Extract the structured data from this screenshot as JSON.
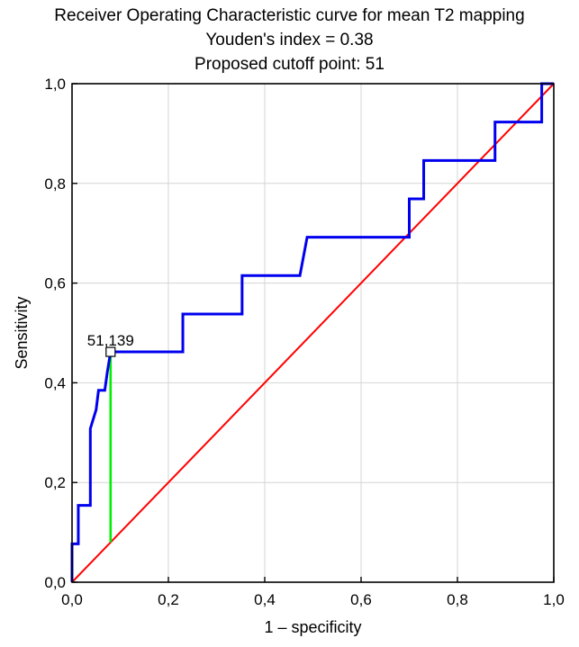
{
  "chart_data": {
    "type": "line",
    "title": "Receiver Operating Characteristic curve for mean T2 mapping",
    "subtitle_1": "Youden's index = 0.38",
    "subtitle_2": "Proposed cutoff point: 51",
    "xlabel": "1 – specificity",
    "ylabel": "Sensitivity",
    "xlim": [
      0,
      1
    ],
    "ylim": [
      0,
      1
    ],
    "grid": true,
    "xticks": [
      "0,0",
      "0,2",
      "0,4",
      "0,6",
      "0,8",
      "1,0"
    ],
    "yticks": [
      "0,0",
      "0,2",
      "0,4",
      "0,6",
      "0,8",
      "1,0"
    ],
    "series": [
      {
        "color": "#0000ee",
        "points": [
          [
            0.0,
            0.0
          ],
          [
            0.0,
            0.077
          ],
          [
            0.013,
            0.077
          ],
          [
            0.013,
            0.154
          ],
          [
            0.038,
            0.154
          ],
          [
            0.038,
            0.308
          ],
          [
            0.05,
            0.346
          ],
          [
            0.055,
            0.385
          ],
          [
            0.068,
            0.385
          ],
          [
            0.073,
            0.42
          ],
          [
            0.08,
            0.462
          ],
          [
            0.23,
            0.462
          ],
          [
            0.23,
            0.538
          ],
          [
            0.353,
            0.538
          ],
          [
            0.353,
            0.615
          ],
          [
            0.473,
            0.615
          ],
          [
            0.488,
            0.692
          ],
          [
            0.7,
            0.692
          ],
          [
            0.7,
            0.769
          ],
          [
            0.73,
            0.769
          ],
          [
            0.73,
            0.846
          ],
          [
            0.878,
            0.846
          ],
          [
            0.878,
            0.923
          ],
          [
            0.975,
            0.923
          ],
          [
            0.975,
            1.0
          ],
          [
            1.0,
            1.0
          ]
        ]
      },
      {
        "color": "#ff0000",
        "points": [
          [
            0,
            0
          ],
          [
            1,
            1
          ]
        ]
      }
    ],
    "youden_line": {
      "x": 0.08,
      "y_from": 0.08,
      "y_to": 0.462,
      "color": "#00ee00"
    },
    "cutoff_marker": {
      "x": 0.08,
      "y": 0.462
    },
    "annotations": [
      {
        "text": "51,139",
        "x": 0.08,
        "y": 0.462
      }
    ]
  }
}
